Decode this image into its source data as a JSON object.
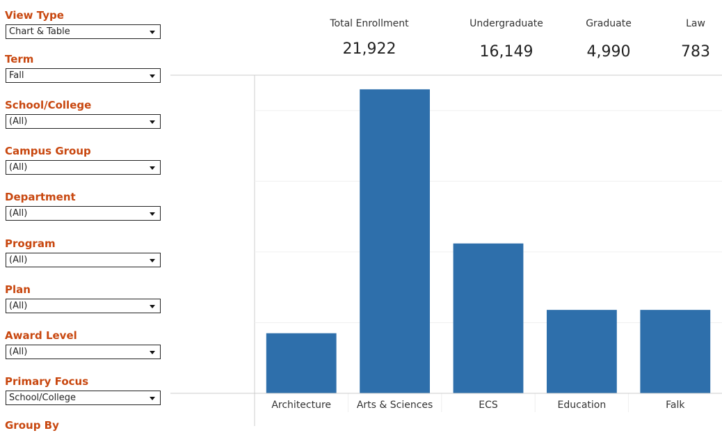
{
  "filters": [
    {
      "label": "View Type",
      "value": "Chart & Table"
    },
    {
      "label": "Term",
      "value": "Fall"
    },
    {
      "label": "School/College",
      "value": "(All)"
    },
    {
      "label": "Campus Group",
      "value": "(All)"
    },
    {
      "label": "Department",
      "value": "(All)"
    },
    {
      "label": "Program",
      "value": "(All)"
    },
    {
      "label": "Plan",
      "value": "(All)"
    },
    {
      "label": "Award Level",
      "value": "(All)"
    },
    {
      "label": "Primary Focus",
      "value": "School/College"
    },
    {
      "label": "Group By"
    }
  ],
  "kpis": [
    {
      "label": "Total Enrollment",
      "value": "21,922"
    },
    {
      "label": "Undergraduate",
      "value": "16,149"
    },
    {
      "label": "Graduate",
      "value": "4,990"
    },
    {
      "label": "Law",
      "value": "783"
    }
  ],
  "chart_data": {
    "type": "bar",
    "categories": [
      "Architecture",
      "Arts & Sciences",
      "ECS",
      "Education",
      "Falk"
    ],
    "values": [
      850,
      4300,
      2120,
      1180,
      1180
    ],
    "color": "#2e6fab",
    "ylim": [
      0,
      4500
    ],
    "gridlines": [
      1000,
      2000,
      3000,
      4000
    ]
  }
}
